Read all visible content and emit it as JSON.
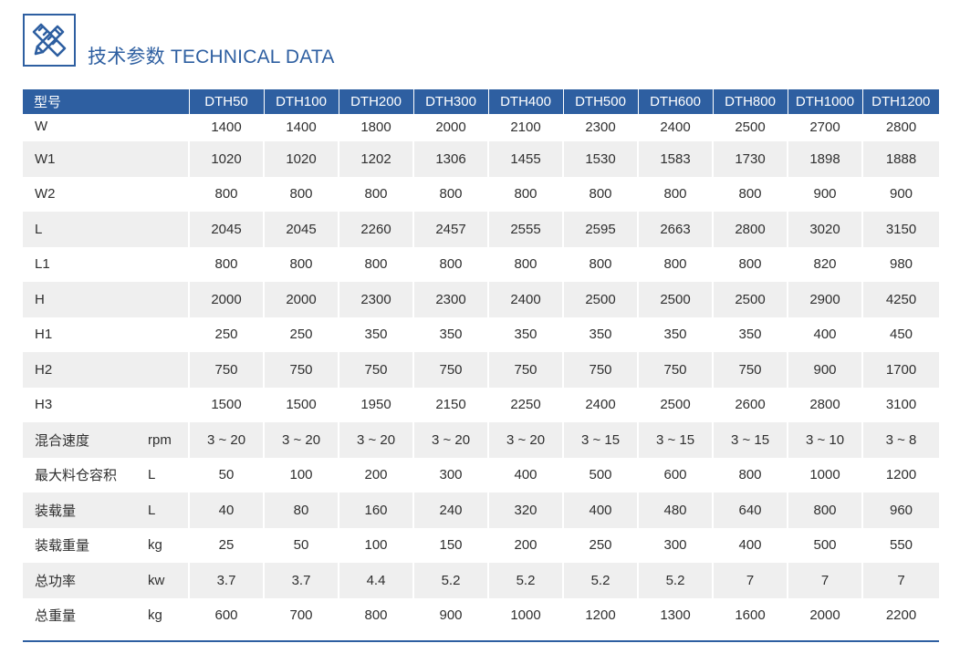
{
  "header": {
    "title": "技术参数 TECHNICAL DATA",
    "icon": "ruler-pencil-icon",
    "accent_color": "#2e5fa1"
  },
  "table": {
    "corner_label": "型号",
    "models": [
      "DTH50",
      "DTH100",
      "DTH200",
      "DTH300",
      "DTH400",
      "DTH500",
      "DTH600",
      "DTH800",
      "DTH1000",
      "DTH1200"
    ],
    "rows": [
      {
        "label": "W",
        "unit": "",
        "values": [
          "1400",
          "1400",
          "1800",
          "2000",
          "2100",
          "2300",
          "2400",
          "2500",
          "2700",
          "2800"
        ]
      },
      {
        "label": "W1",
        "unit": "",
        "values": [
          "1020",
          "1020",
          "1202",
          "1306",
          "1455",
          "1530",
          "1583",
          "1730",
          "1898",
          "1888"
        ]
      },
      {
        "label": "W2",
        "unit": "",
        "values": [
          "800",
          "800",
          "800",
          "800",
          "800",
          "800",
          "800",
          "800",
          "900",
          "900"
        ]
      },
      {
        "label": "L",
        "unit": "",
        "values": [
          "2045",
          "2045",
          "2260",
          "2457",
          "2555",
          "2595",
          "2663",
          "2800",
          "3020",
          "3150"
        ]
      },
      {
        "label": "L1",
        "unit": "",
        "values": [
          "800",
          "800",
          "800",
          "800",
          "800",
          "800",
          "800",
          "800",
          "820",
          "980"
        ]
      },
      {
        "label": "H",
        "unit": "",
        "values": [
          "2000",
          "2000",
          "2300",
          "2300",
          "2400",
          "2500",
          "2500",
          "2500",
          "2900",
          "4250"
        ]
      },
      {
        "label": "H1",
        "unit": "",
        "values": [
          "250",
          "250",
          "350",
          "350",
          "350",
          "350",
          "350",
          "350",
          "400",
          "450"
        ]
      },
      {
        "label": "H2",
        "unit": "",
        "values": [
          "750",
          "750",
          "750",
          "750",
          "750",
          "750",
          "750",
          "750",
          "900",
          "1700"
        ]
      },
      {
        "label": "H3",
        "unit": "",
        "values": [
          "1500",
          "1500",
          "1950",
          "2150",
          "2250",
          "2400",
          "2500",
          "2600",
          "2800",
          "3100"
        ]
      },
      {
        "label": "混合速度",
        "unit": "rpm",
        "values": [
          "3 ~ 20",
          "3 ~ 20",
          "3 ~ 20",
          "3 ~ 20",
          "3 ~ 20",
          "3 ~ 15",
          "3 ~ 15",
          "3 ~ 15",
          "3 ~ 10",
          "3 ~ 8"
        ]
      },
      {
        "label": "最大料仓容积",
        "unit": "L",
        "values": [
          "50",
          "100",
          "200",
          "300",
          "400",
          "500",
          "600",
          "800",
          "1000",
          "1200"
        ]
      },
      {
        "label": "装载量",
        "unit": "L",
        "values": [
          "40",
          "80",
          "160",
          "240",
          "320",
          "400",
          "480",
          "640",
          "800",
          "960"
        ]
      },
      {
        "label": "装载重量",
        "unit": "kg",
        "values": [
          "25",
          "50",
          "100",
          "150",
          "200",
          "250",
          "300",
          "400",
          "500",
          "550"
        ]
      },
      {
        "label": "总功率",
        "unit": "kw",
        "values": [
          "3.7",
          "3.7",
          "4.4",
          "5.2",
          "5.2",
          "5.2",
          "5.2",
          "7",
          "7",
          "7"
        ]
      },
      {
        "label": "总重量",
        "unit": "kg",
        "values": [
          "600",
          "700",
          "800",
          "900",
          "1000",
          "1200",
          "1300",
          "1600",
          "2000",
          "2200"
        ]
      }
    ]
  }
}
